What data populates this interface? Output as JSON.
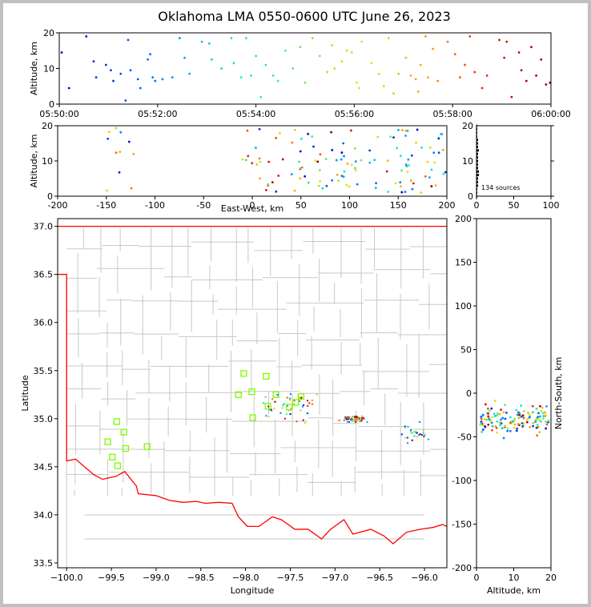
{
  "title": "Oklahoma LMA 0550-0600 UTC June 26, 2023",
  "chart_data": [
    {
      "id": "time-altitude",
      "type": "scatter",
      "xlabel": "",
      "ylabel": "Altitude, km",
      "xticks": [
        "05:50:00",
        "05:52:00",
        "05:54:00",
        "05:56:00",
        "05:58:00",
        "06:00:00"
      ],
      "xlim_minutes": [
        0,
        10
      ],
      "ylim": [
        0,
        20
      ],
      "yticks": [
        0,
        10,
        20
      ],
      "color_by": "time",
      "points": [
        {
          "t": 0.05,
          "alt": 14.5
        },
        {
          "t": 0.2,
          "alt": 4.5
        },
        {
          "t": 0.55,
          "alt": 19.0
        },
        {
          "t": 0.7,
          "alt": 12.0
        },
        {
          "t": 0.75,
          "alt": 7.5
        },
        {
          "t": 0.95,
          "alt": 11.0
        },
        {
          "t": 1.05,
          "alt": 9.5
        },
        {
          "t": 1.1,
          "alt": 6.5
        },
        {
          "t": 1.25,
          "alt": 8.5
        },
        {
          "t": 1.35,
          "alt": 1.0
        },
        {
          "t": 1.4,
          "alt": 18.0
        },
        {
          "t": 1.45,
          "alt": 9.5
        },
        {
          "t": 1.6,
          "alt": 7.0
        },
        {
          "t": 1.65,
          "alt": 4.5
        },
        {
          "t": 1.8,
          "alt": 12.5
        },
        {
          "t": 1.85,
          "alt": 14.0
        },
        {
          "t": 1.9,
          "alt": 7.5
        },
        {
          "t": 1.95,
          "alt": 6.5
        },
        {
          "t": 2.1,
          "alt": 7.0
        },
        {
          "t": 2.3,
          "alt": 7.5
        },
        {
          "t": 2.45,
          "alt": 18.5
        },
        {
          "t": 2.55,
          "alt": 13.0
        },
        {
          "t": 2.65,
          "alt": 8.5
        },
        {
          "t": 2.9,
          "alt": 17.5
        },
        {
          "t": 3.05,
          "alt": 17.0
        },
        {
          "t": 3.1,
          "alt": 12.5
        },
        {
          "t": 3.3,
          "alt": 10.0
        },
        {
          "t": 3.5,
          "alt": 18.5
        },
        {
          "t": 3.55,
          "alt": 11.5
        },
        {
          "t": 3.7,
          "alt": 7.5
        },
        {
          "t": 3.8,
          "alt": 18.5
        },
        {
          "t": 3.9,
          "alt": 8.0
        },
        {
          "t": 4.0,
          "alt": 13.5
        },
        {
          "t": 4.1,
          "alt": 2.0
        },
        {
          "t": 4.2,
          "alt": 11.0
        },
        {
          "t": 4.35,
          "alt": 8.0
        },
        {
          "t": 4.45,
          "alt": 6.5
        },
        {
          "t": 4.6,
          "alt": 15.0
        },
        {
          "t": 4.75,
          "alt": 10.0
        },
        {
          "t": 4.9,
          "alt": 16.0
        },
        {
          "t": 5.0,
          "alt": 6.0
        },
        {
          "t": 5.15,
          "alt": 18.5
        },
        {
          "t": 5.3,
          "alt": 13.5
        },
        {
          "t": 5.45,
          "alt": 9.0
        },
        {
          "t": 5.55,
          "alt": 16.5
        },
        {
          "t": 5.6,
          "alt": 10.0
        },
        {
          "t": 5.75,
          "alt": 12.0
        },
        {
          "t": 5.85,
          "alt": 15.0
        },
        {
          "t": 5.95,
          "alt": 14.5
        },
        {
          "t": 6.05,
          "alt": 6.0
        },
        {
          "t": 6.1,
          "alt": 4.5
        },
        {
          "t": 6.15,
          "alt": 17.5
        },
        {
          "t": 6.35,
          "alt": 11.5
        },
        {
          "t": 6.5,
          "alt": 8.5
        },
        {
          "t": 6.6,
          "alt": 5.0
        },
        {
          "t": 6.7,
          "alt": 18.5
        },
        {
          "t": 6.8,
          "alt": 3.0
        },
        {
          "t": 6.9,
          "alt": 8.5
        },
        {
          "t": 7.05,
          "alt": 13.0
        },
        {
          "t": 7.15,
          "alt": 8.0
        },
        {
          "t": 7.25,
          "alt": 7.0
        },
        {
          "t": 7.3,
          "alt": 3.5
        },
        {
          "t": 7.35,
          "alt": 11.0
        },
        {
          "t": 7.45,
          "alt": 19.0
        },
        {
          "t": 7.5,
          "alt": 7.5
        },
        {
          "t": 7.6,
          "alt": 15.5
        },
        {
          "t": 7.7,
          "alt": 6.5
        },
        {
          "t": 7.9,
          "alt": 17.5
        },
        {
          "t": 8.05,
          "alt": 14.0
        },
        {
          "t": 8.15,
          "alt": 7.5
        },
        {
          "t": 8.25,
          "alt": 11.0
        },
        {
          "t": 8.35,
          "alt": 19.0
        },
        {
          "t": 8.45,
          "alt": 9.0
        },
        {
          "t": 8.6,
          "alt": 4.5
        },
        {
          "t": 8.7,
          "alt": 8.0
        },
        {
          "t": 8.95,
          "alt": 18.0
        },
        {
          "t": 9.05,
          "alt": 13.0
        },
        {
          "t": 9.1,
          "alt": 17.5
        },
        {
          "t": 9.2,
          "alt": 2.0
        },
        {
          "t": 9.35,
          "alt": 14.5
        },
        {
          "t": 9.4,
          "alt": 9.5
        },
        {
          "t": 9.5,
          "alt": 6.5
        },
        {
          "t": 9.6,
          "alt": 16.0
        },
        {
          "t": 9.7,
          "alt": 8.0
        },
        {
          "t": 9.8,
          "alt": 12.5
        },
        {
          "t": 9.9,
          "alt": 5.5
        },
        {
          "t": 9.98,
          "alt": 6.0
        }
      ]
    },
    {
      "id": "ew-altitude",
      "type": "scatter",
      "xlabel": "East-West, km",
      "ylabel": "Altitude, km",
      "xlim": [
        -200,
        200
      ],
      "xticks": [
        -200,
        -150,
        -100,
        -50,
        0,
        50,
        100,
        150,
        200
      ],
      "ylim": [
        0,
        20
      ],
      "yticks": [
        0,
        10,
        20
      ]
    },
    {
      "id": "altitude-histogram",
      "type": "bar",
      "xlim": [
        0,
        100
      ],
      "xticks": [
        0,
        50,
        100
      ],
      "ylim": [
        0,
        20
      ],
      "yticks": [
        0,
        10,
        20
      ],
      "annotation": "134 sources"
    },
    {
      "id": "plan-view",
      "type": "scatter",
      "xlabel": "Longitude",
      "ylabel": "Latitude",
      "xlim": [
        -100.1,
        -95.75
      ],
      "xticks": [
        "−100.0",
        "−99.5",
        "−99.0",
        "−98.5",
        "−98.0",
        "−97.5",
        "−97.0",
        "−96.5",
        "−96.0"
      ],
      "ylim": [
        33.45,
        37.08
      ],
      "yticks": [
        "33.5",
        "34.0",
        "34.5",
        "35.0",
        "35.5",
        "36.0",
        "36.5",
        "37.0"
      ],
      "stations": [
        {
          "lon": -98.02,
          "lat": 35.47
        },
        {
          "lon": -97.77,
          "lat": 35.44
        },
        {
          "lon": -97.93,
          "lat": 35.28
        },
        {
          "lon": -98.08,
          "lat": 35.25
        },
        {
          "lon": -97.66,
          "lat": 35.25
        },
        {
          "lon": -97.38,
          "lat": 35.23
        },
        {
          "lon": -97.44,
          "lat": 35.17
        },
        {
          "lon": -97.75,
          "lat": 35.13
        },
        {
          "lon": -97.51,
          "lat": 35.12
        },
        {
          "lon": -97.92,
          "lat": 35.01
        },
        {
          "lon": -99.44,
          "lat": 34.97
        },
        {
          "lon": -99.36,
          "lat": 34.86
        },
        {
          "lon": -99.54,
          "lat": 34.76
        },
        {
          "lon": -99.1,
          "lat": 34.71
        },
        {
          "lon": -99.34,
          "lat": 34.69
        },
        {
          "lon": -99.49,
          "lat": 34.6
        },
        {
          "lon": -99.43,
          "lat": 34.51
        }
      ]
    },
    {
      "id": "altitude-ns",
      "type": "scatter",
      "xlabel": "Altitude, km",
      "ylabel": "North-South, km",
      "xlim": [
        0,
        20
      ],
      "xticks": [
        0,
        10,
        20
      ],
      "ylim": [
        -200,
        200
      ],
      "yticks": [
        -200,
        -150,
        -100,
        -50,
        0,
        50,
        100,
        150,
        200
      ]
    }
  ]
}
